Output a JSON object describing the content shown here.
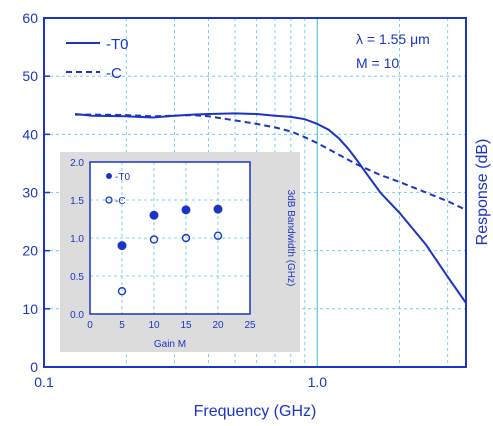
{
  "colors": {
    "main": "#1a35c4",
    "grid": "#58c8e8",
    "inset_panel": "#dcdcdc",
    "inset_plot": "#ffffff",
    "background": "#ffffff"
  },
  "chart_data": [
    {
      "type": "line",
      "title": "",
      "xlabel": "Frequency (GHz)",
      "ylabel": "Response (dB)",
      "xscale": "log",
      "xlim": [
        0.1,
        3.5
      ],
      "ylim": [
        0,
        60
      ],
      "xticks": [
        {
          "value": 0.1,
          "label": "0.1"
        },
        {
          "value": 1.0,
          "label": "1.0"
        }
      ],
      "yticks": [
        0,
        10,
        20,
        30,
        40,
        50,
        60
      ],
      "grid": true,
      "legend_position": "top-left",
      "annotations": [
        "λ = 1.55 μm",
        "M = 10"
      ],
      "series": [
        {
          "name": "-T0",
          "style": "solid",
          "points": [
            [
              0.13,
              43.5
            ],
            [
              0.15,
              43.2
            ],
            [
              0.2,
              43.1
            ],
            [
              0.25,
              42.9
            ],
            [
              0.3,
              43.2
            ],
            [
              0.35,
              43.4
            ],
            [
              0.4,
              43.5
            ],
            [
              0.5,
              43.6
            ],
            [
              0.6,
              43.5
            ],
            [
              0.7,
              43.2
            ],
            [
              0.8,
              43.0
            ],
            [
              0.9,
              42.6
            ],
            [
              1.0,
              41.8
            ],
            [
              1.1,
              40.8
            ],
            [
              1.2,
              39.3
            ],
            [
              1.3,
              37.5
            ],
            [
              1.4,
              35.5
            ],
            [
              1.5,
              33.5
            ],
            [
              1.7,
              30.0
            ],
            [
              2.0,
              26.5
            ],
            [
              2.5,
              21.0
            ],
            [
              3.0,
              15.5
            ],
            [
              3.5,
              11.0
            ]
          ]
        },
        {
          "name": "-C",
          "style": "dashed",
          "points": [
            [
              0.13,
              43.4
            ],
            [
              0.15,
              43.4
            ],
            [
              0.2,
              43.3
            ],
            [
              0.25,
              43.1
            ],
            [
              0.3,
              43.2
            ],
            [
              0.35,
              43.3
            ],
            [
              0.4,
              43.1
            ],
            [
              0.5,
              42.4
            ],
            [
              0.6,
              41.8
            ],
            [
              0.7,
              41.2
            ],
            [
              0.8,
              40.5
            ],
            [
              0.9,
              39.5
            ],
            [
              1.0,
              38.5
            ],
            [
              1.2,
              36.5
            ],
            [
              1.4,
              34.8
            ],
            [
              1.7,
              33.0
            ],
            [
              2.0,
              31.8
            ],
            [
              2.5,
              30.0
            ],
            [
              3.0,
              28.5
            ],
            [
              3.5,
              27.0
            ]
          ]
        }
      ]
    },
    {
      "type": "scatter",
      "title": "",
      "xlabel": "Gain M",
      "ylabel": "3dB Bandwidth (GHz)",
      "xlim": [
        0,
        25
      ],
      "ylim": [
        0,
        2.0
      ],
      "xticks": [
        0,
        5,
        10,
        15,
        20,
        25
      ],
      "yticks": [
        "0.0",
        "0.5",
        "1.0",
        "1.5",
        "2.0"
      ],
      "grid": true,
      "legend_position": "top-left",
      "series": [
        {
          "name": "-T0",
          "marker": "filled-circle",
          "x": [
            5,
            10,
            15,
            20
          ],
          "y": [
            0.9,
            1.3,
            1.37,
            1.38
          ]
        },
        {
          "name": "-C",
          "marker": "open-circle",
          "x": [
            5,
            10,
            15,
            20
          ],
          "y": [
            0.3,
            0.98,
            1.0,
            1.03
          ]
        }
      ]
    }
  ]
}
